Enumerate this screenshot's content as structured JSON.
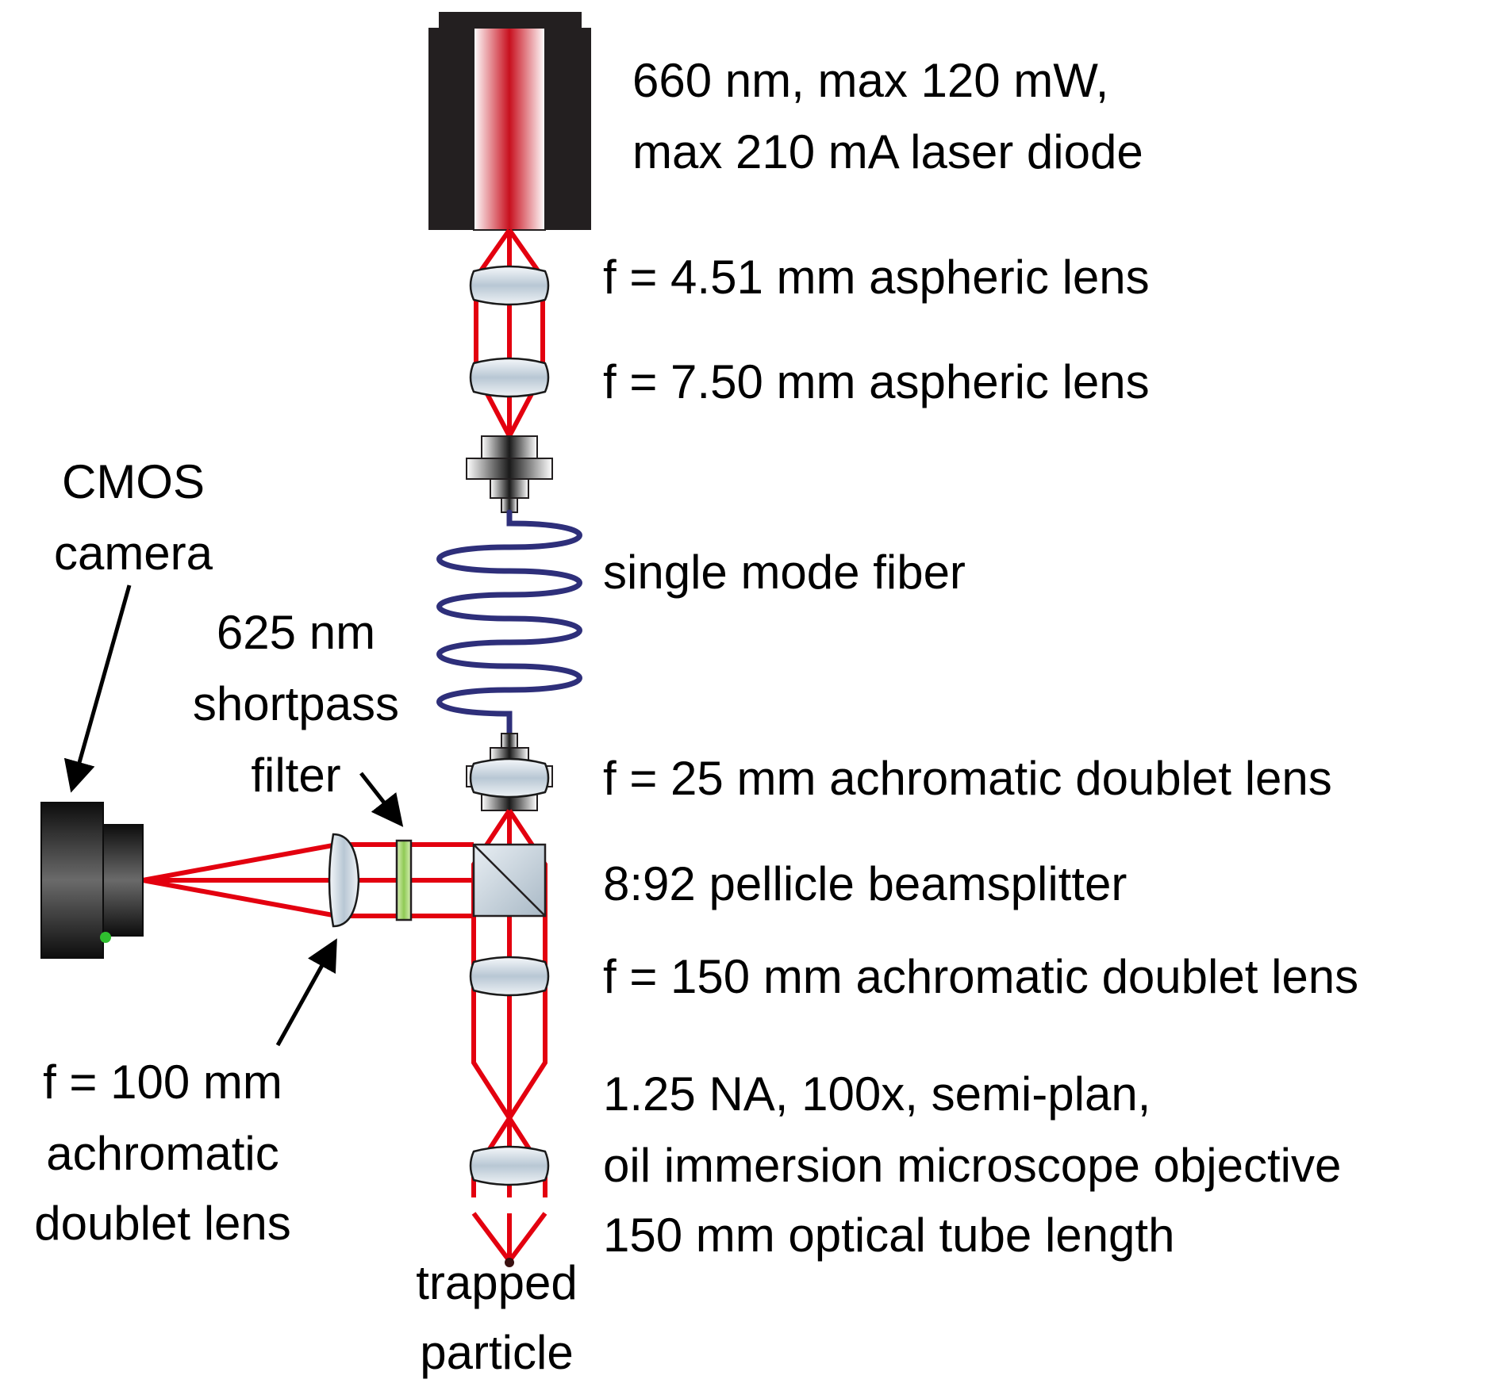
{
  "labels": {
    "laser_line1": "660 nm, max 120 mW,",
    "laser_line2": "max 210 mA laser diode",
    "asphere1": "f = 4.51 mm aspheric lens",
    "asphere2": "f = 7.50 mm aspheric lens",
    "fiber": "single mode fiber",
    "doublet25": "f = 25 mm achromatic doublet lens",
    "beamsplitter": "8:92 pellicle beamsplitter",
    "doublet150": "f = 150 mm achromatic doublet lens",
    "objective_line1": "1.25 NA, 100x, semi-plan,",
    "objective_line2": "oil immersion microscope objective",
    "objective_line3": "150 mm optical tube length",
    "particle_line1": "trapped",
    "particle_line2": "particle",
    "camera_line1": "CMOS",
    "camera_line2": "camera",
    "filter_line1": "625 nm",
    "filter_line2": "shortpass",
    "filter_line3": "filter",
    "doublet100_line1": "f = 100 mm",
    "doublet100_line2": "achromatic",
    "doublet100_line3": "doublet lens"
  },
  "colors": {
    "beam": "#e3000f",
    "fiber": "#2e2f7a",
    "filter": "#9fd46a",
    "housing": "#231f20"
  }
}
